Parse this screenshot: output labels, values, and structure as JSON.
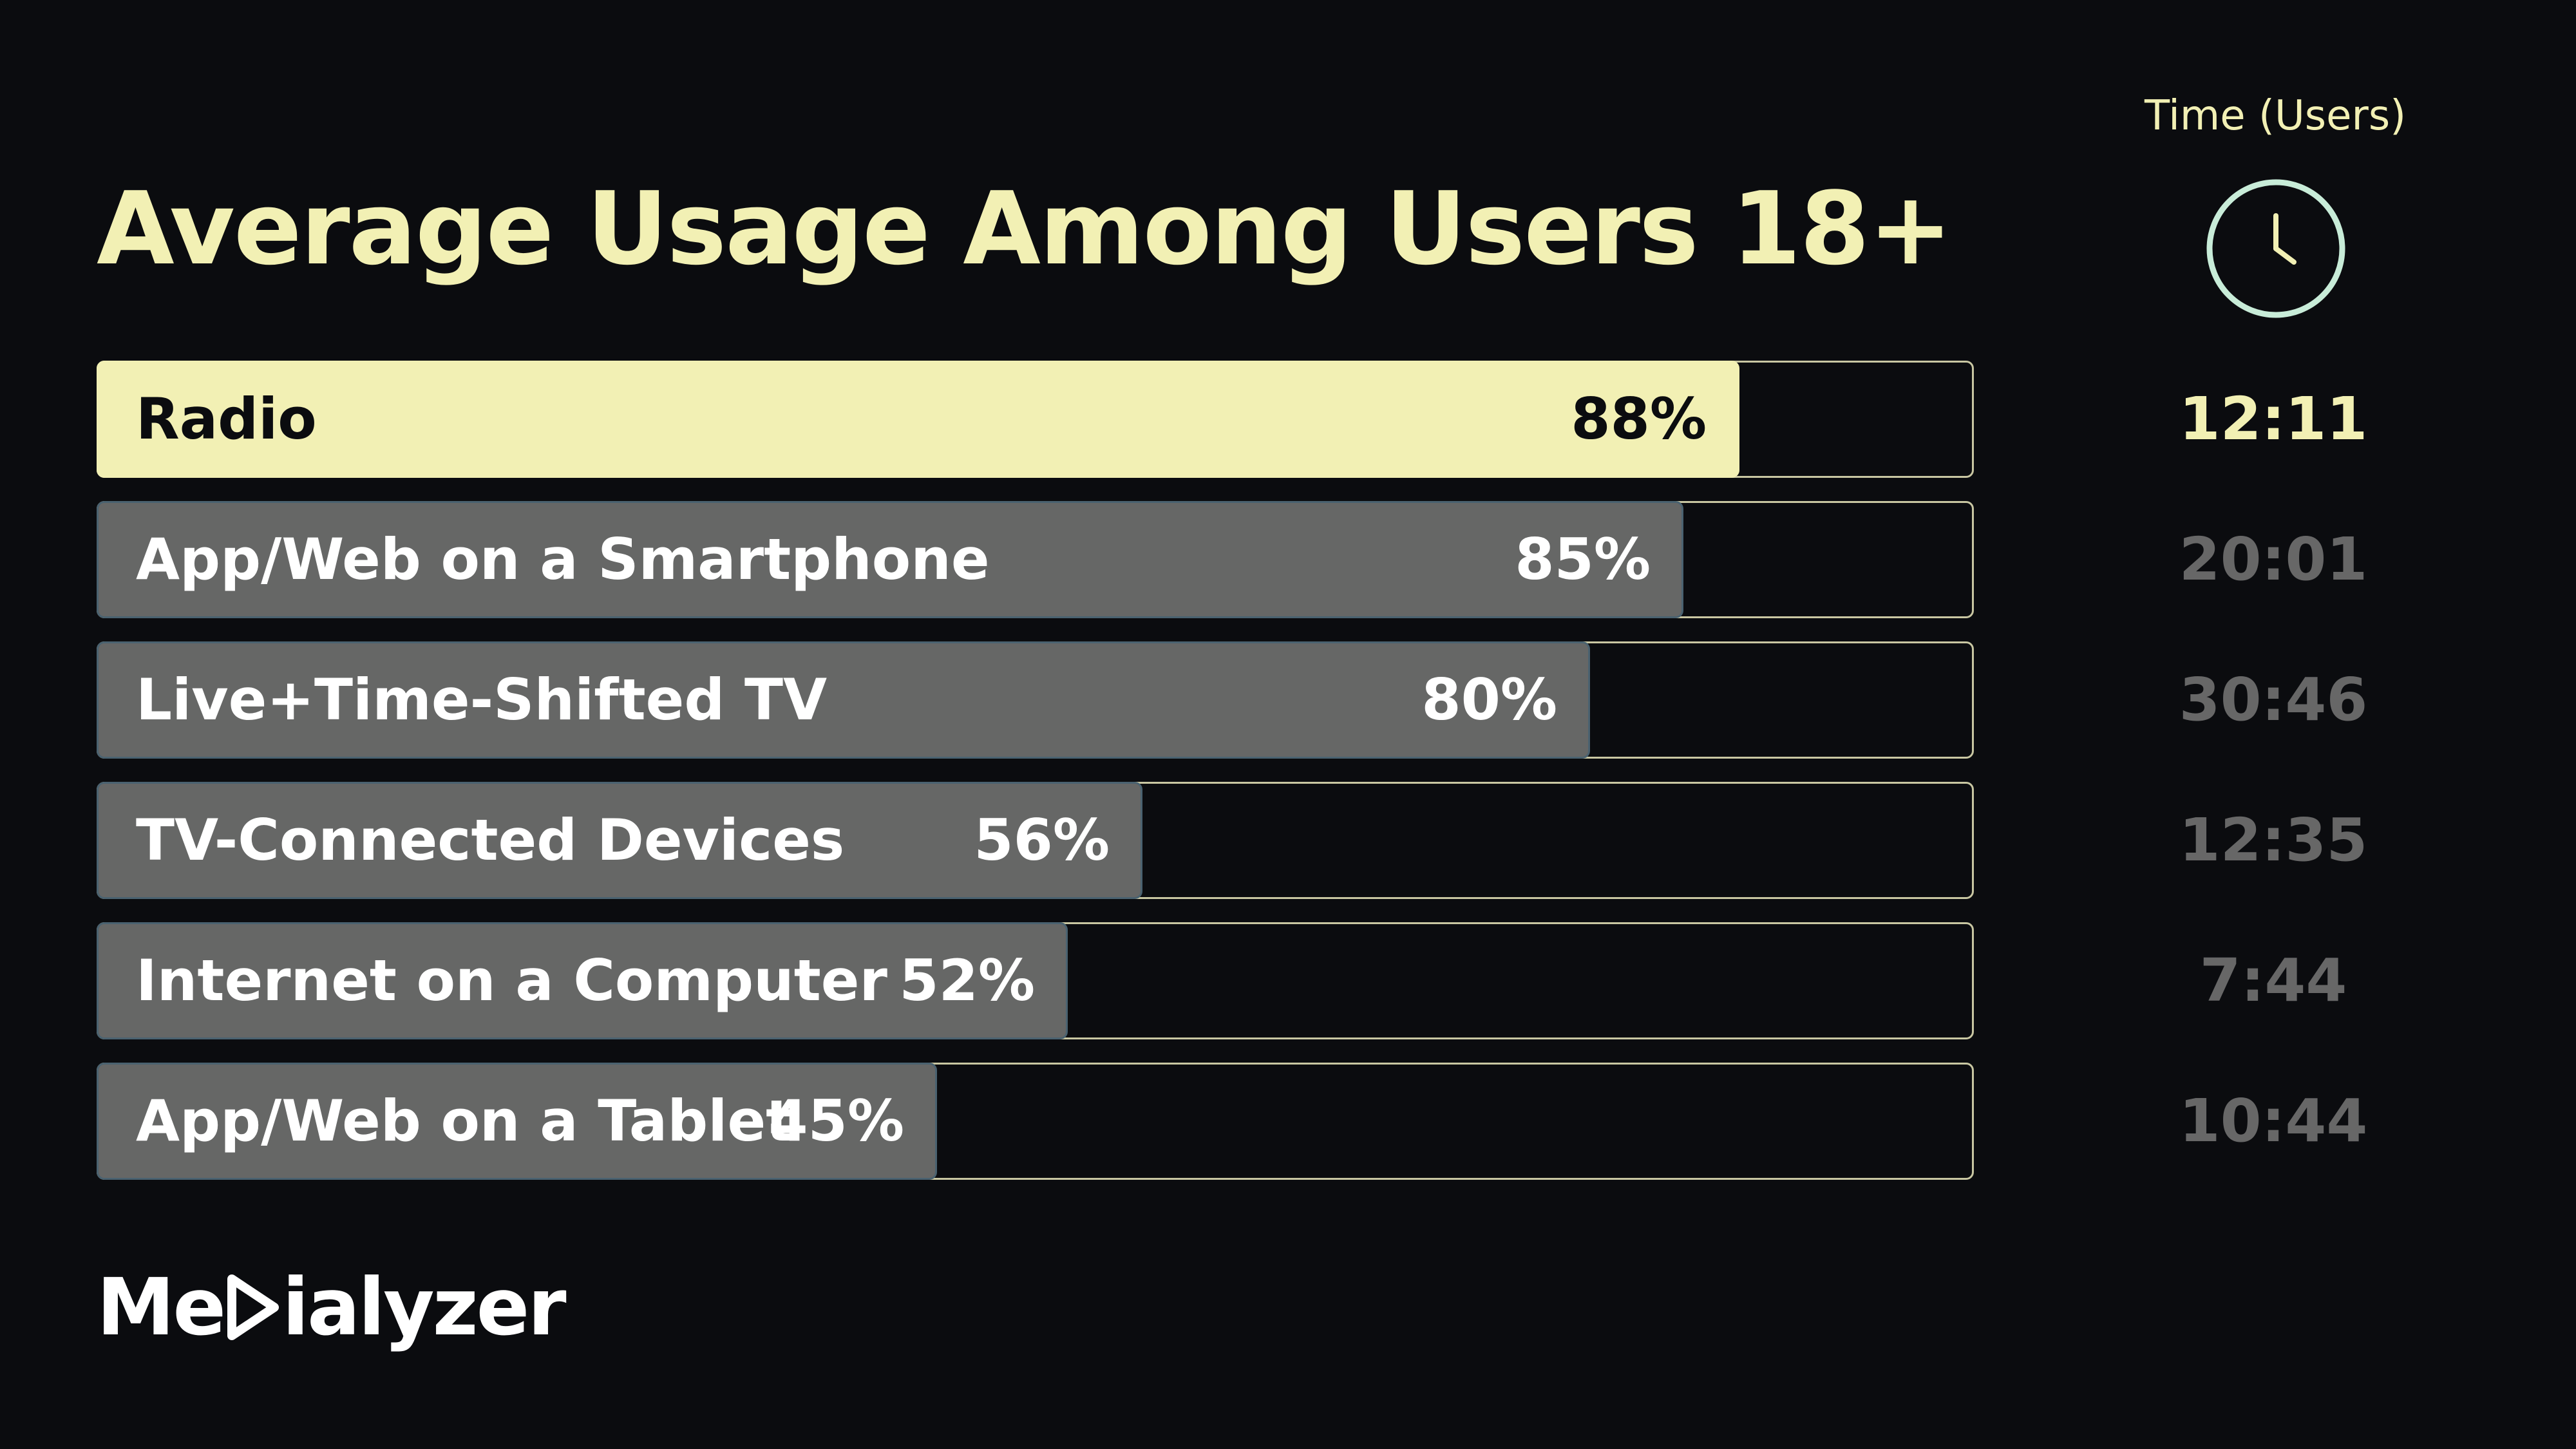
{
  "title": "Average Usage Among Users 18+",
  "time_header": "Time (Users)",
  "clock_icon": "clock-icon",
  "logo": {
    "text_before": "Me",
    "text_after": "ialyzer",
    "icon": "play-icon",
    "full_text": "Medialyzer"
  },
  "colors": {
    "background": "#0b0c0f",
    "accent": "#f2f0b4",
    "bar": "#666766",
    "muted_text": "#676767"
  },
  "chart_data": {
    "type": "bar",
    "orientation": "horizontal",
    "title": "Average Usage Among Users 18+",
    "categories": [
      "Radio",
      "App/Web on a Smartphone",
      "Live+Time-Shifted TV",
      "TV-Connected Devices",
      "Internet on a Computer",
      "App/Web on a Tablet"
    ],
    "values": [
      88,
      85,
      80,
      56,
      52,
      45
    ],
    "value_labels": [
      "88%",
      "85%",
      "80%",
      "56%",
      "52%",
      "45%"
    ],
    "time_header": "Time (Users)",
    "times": [
      "12:11",
      "20:01",
      "30:46",
      "12:35",
      "7:44",
      "10:44"
    ],
    "highlight_index": 0,
    "xlim": [
      0,
      100
    ],
    "grid": false,
    "legend": "none"
  }
}
